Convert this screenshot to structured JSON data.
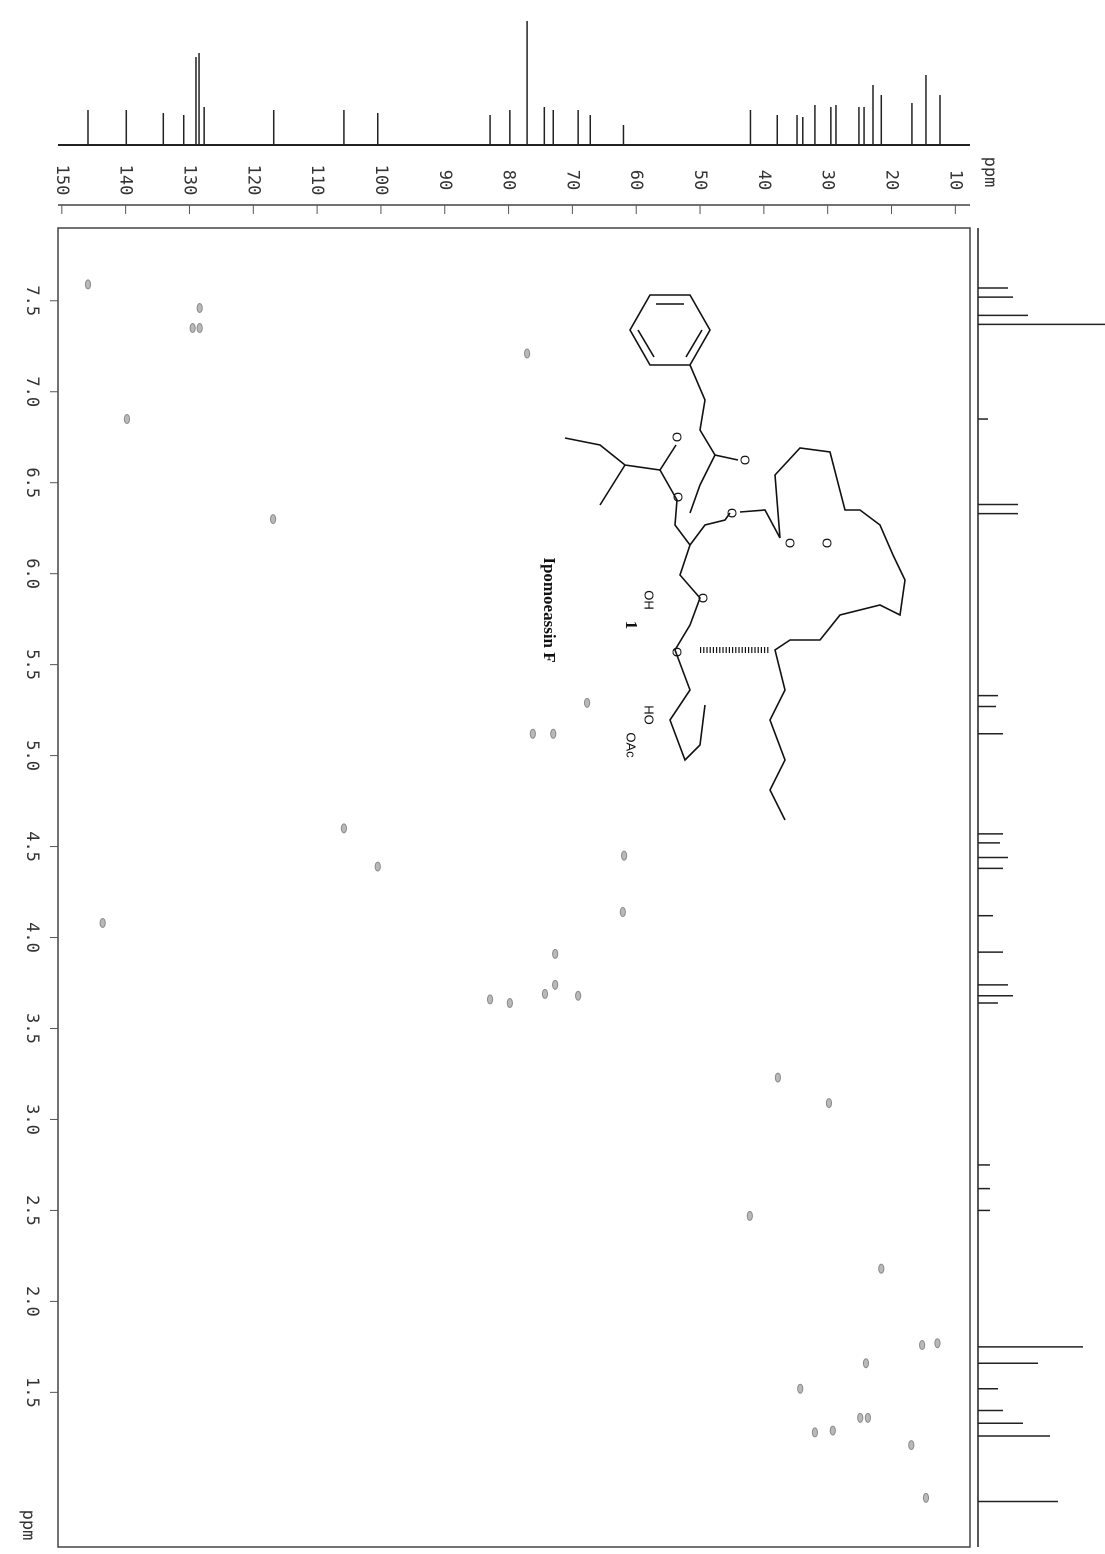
{
  "chart_data": {
    "type": "scatter",
    "x_label": "ppm",
    "y_label": "ppm",
    "xlim": [
      150.6,
      7.7
    ],
    "xticks": [
      150,
      140,
      130,
      120,
      110,
      100,
      90,
      80,
      70,
      60,
      50,
      40,
      30,
      20,
      10
    ],
    "ylim": [
      7.9,
      0.65
    ],
    "yticks": [
      7.5,
      {
        "value": 7,
        "label": "7.0"
      },
      6.5,
      {
        "value": 6,
        "label": "6.0"
      },
      5.5,
      {
        "value": 5,
        "label": "5.0"
      },
      4.5,
      {
        "value": 4,
        "label": "4.0"
      },
      3.5,
      {
        "value": 3,
        "label": "3.0"
      },
      2.5,
      {
        "value": 2,
        "label": "2.0"
      },
      1.5
    ],
    "color": "#8a8a8a",
    "x": [
      145.9,
      128.4,
      128.4,
      129.5,
      77.1,
      139.8,
      116.9,
      67.7,
      73.0,
      76.2,
      105.8,
      100.5,
      61.9,
      62.1,
      72.7,
      82.9,
      79.8,
      74.3,
      72.7,
      69.1,
      37.8,
      29.8,
      42.2,
      21.6,
      15.2,
      12.8,
      24.0,
      34.3,
      24.9,
      23.7,
      32.0,
      29.2,
      16.9,
      14.6,
      143.6
    ],
    "y": [
      7.59,
      7.46,
      7.35,
      7.35,
      7.21,
      6.85,
      6.3,
      5.29,
      5.12,
      5.12,
      4.6,
      4.39,
      4.45,
      4.14,
      3.91,
      3.66,
      3.64,
      3.69,
      3.74,
      3.68,
      3.23,
      3.09,
      2.47,
      2.18,
      1.76,
      1.77,
      1.66,
      1.52,
      1.36,
      1.36,
      1.28,
      1.29,
      1.21,
      0.92,
      4.08
    ],
    "carbon_spectrum": {
      "shifts": [
        145.9,
        139.9,
        134.1,
        130.9,
        128.98,
        128.5,
        127.7,
        116.8,
        105.8,
        100.5,
        82.9,
        79.8,
        77.1,
        74.4,
        73.0,
        69.1,
        67.2,
        62.0,
        42.1,
        37.9,
        34.8,
        33.9,
        32.0,
        29.5,
        28.7,
        25.1,
        24.3,
        22.9,
        21.6,
        16.8,
        14.6,
        12.4
      ],
      "heights": [
        35,
        35,
        32,
        30,
        88,
        92,
        38,
        35,
        35,
        32,
        30,
        35,
        124,
        38,
        35,
        35,
        30,
        20,
        35,
        30,
        30,
        28,
        40,
        38,
        40,
        38,
        38,
        60,
        50,
        42,
        70,
        50
      ]
    },
    "proton_spectrum": {
      "shifts": [
        7.57,
        7.52,
        7.42,
        7.37,
        6.85,
        6.38,
        6.33,
        5.33,
        5.27,
        5.12,
        4.57,
        4.52,
        4.44,
        4.38,
        4.12,
        3.92,
        3.74,
        3.68,
        3.64,
        2.75,
        2.62,
        2.5,
        1.75,
        1.66,
        1.52,
        1.4,
        1.33,
        1.26,
        0.9
      ],
      "heights": [
        30,
        35,
        50,
        127,
        10,
        40,
        40,
        20,
        18,
        25,
        25,
        22,
        30,
        25,
        15,
        25,
        30,
        35,
        20,
        12,
        12,
        12,
        105,
        60,
        20,
        25,
        45,
        72,
        80
      ]
    },
    "structure": {
      "name": "Ipomoeassin F",
      "number": "1",
      "atom_labels": [
        "O",
        "O",
        "O",
        "O",
        "O",
        "O",
        "O",
        "O",
        "OH",
        "HO",
        "OAc"
      ]
    }
  }
}
